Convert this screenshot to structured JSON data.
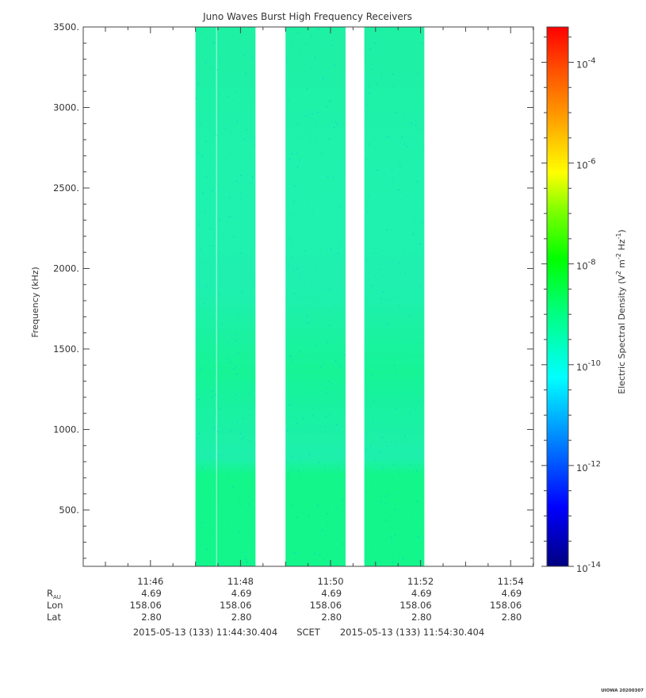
{
  "chart_data": {
    "type": "heatmap",
    "title": "Juno Waves Burst High Frequency Receivers",
    "ylabel": "Frequency (kHz)",
    "ylim": [
      150,
      3500
    ],
    "y_ticks": [
      500,
      1000,
      1500,
      2000,
      2500,
      3000,
      3500
    ],
    "y_tick_labels": [
      "500.",
      "1000.",
      "1500.",
      "2000.",
      "2500.",
      "3000.",
      "3500."
    ],
    "x_range": [
      "11:44:30.404",
      "11:54:30.404"
    ],
    "x_ticks": [
      "11:46",
      "11:48",
      "11:50",
      "11:52",
      "11:54"
    ],
    "ephemeris": {
      "rows": [
        {
          "label": "R",
          "sub": "AU",
          "values": [
            "4.69",
            "4.69",
            "4.69",
            "4.69",
            "4.69"
          ]
        },
        {
          "label": "Lon",
          "sub": "",
          "values": [
            "158.06",
            "158.06",
            "158.06",
            "158.06",
            "158.06"
          ]
        },
        {
          "label": "Lat",
          "sub": "",
          "values": [
            "2.80",
            "2.80",
            "2.80",
            "2.80",
            "2.80"
          ]
        }
      ]
    },
    "time_range_label": {
      "start": "2015-05-13 (133) 11:44:30.404",
      "middle": "SCET",
      "end": "2015-05-13 (133) 11:54:30.404"
    },
    "data_blocks": [
      {
        "start": "11:47:00",
        "end": "11:48:20"
      },
      {
        "start": "11:49:00",
        "end": "11:50:20"
      },
      {
        "start": "11:50:45",
        "end": "11:52:05"
      }
    ],
    "intensity_note": "Spectral density about 1e-10 to 1e-9.5 across 150-3500 kHz; slightly higher (greener) below ~800 kHz and around 1200-1500 kHz",
    "colorbar": {
      "label": "Electric Spectral Density (V² m⁻² Hz⁻¹)",
      "label_parts": {
        "pre": "Electric Spectral Density (V",
        "sq": "2",
        "mid": " m",
        "exp1": "-2",
        "mid2": " Hz",
        "exp2": "-1",
        "post": ")"
      },
      "scale": "log",
      "range_exp": [
        -14,
        -3.3
      ],
      "tick_exps": [
        -14,
        -12,
        -10,
        -8,
        -6,
        -4
      ],
      "tick_base": "10",
      "tick_exp_labels": [
        "-14",
        "-12",
        "-10",
        "-8",
        "-6",
        "-4"
      ]
    },
    "footer_stamp": "UIOWA 20200307"
  }
}
